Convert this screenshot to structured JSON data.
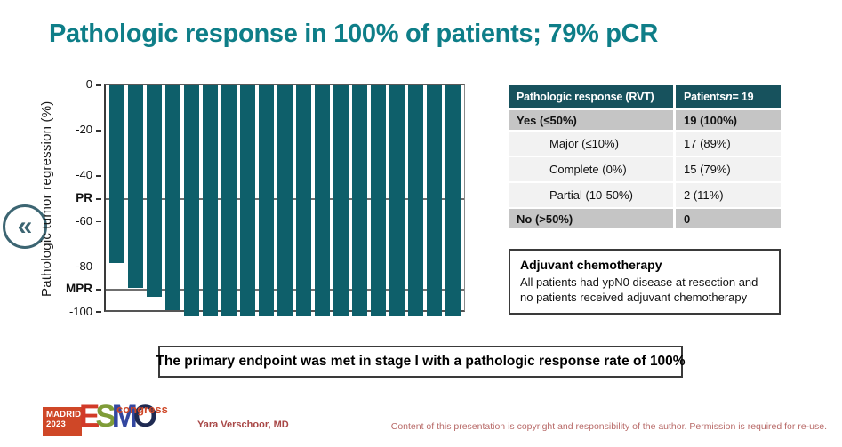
{
  "slide": {
    "title": "Pathologic response in 100% of patients; 79% pCR"
  },
  "nav": {
    "back_icon": "«"
  },
  "colors": {
    "accent_teal": "#0e7e88",
    "bar_teal": "#0e5f6a",
    "table_header_teal": "#17525d",
    "row_gray": "#c5c5c5",
    "logo_red": "#cf4727"
  },
  "chart_data": {
    "type": "bar",
    "title": "",
    "xlabel": "",
    "ylabel": "Pathologic tumor regression (%)",
    "ylim": [
      -100,
      0
    ],
    "grid": false,
    "legend": false,
    "n_patients": 19,
    "bar_color": "#0e5f6a",
    "values": [
      -78,
      -89,
      -93,
      -99,
      -100,
      -100,
      -100,
      -100,
      -100,
      -100,
      -100,
      -100,
      -100,
      -100,
      -100,
      -100,
      -100,
      -100,
      -100
    ],
    "yticks": [
      {
        "label": "0",
        "value": 0,
        "bold": false
      },
      {
        "label": "-20",
        "value": -20,
        "bold": false
      },
      {
        "label": "-40",
        "value": -40,
        "bold": false
      },
      {
        "label": "PR",
        "value": -50,
        "bold": true
      },
      {
        "label": "-60",
        "value": -60,
        "bold": false
      },
      {
        "label": "-80",
        "value": -80,
        "bold": false
      },
      {
        "label": "MPR",
        "value": -90,
        "bold": true
      },
      {
        "label": "-100",
        "value": -100,
        "bold": false
      }
    ],
    "reference_lines": [
      {
        "label": "PR",
        "value": -50
      },
      {
        "label": "MPR",
        "value": -90
      }
    ]
  },
  "table": {
    "header": {
      "col1": "Pathologic response (RVT)",
      "col2_prefix": "Patients ",
      "col2_n": "n",
      "col2_suffix": " = 19"
    },
    "rows": [
      {
        "label": "Yes (≤50%)",
        "value": "19 (100%)"
      },
      {
        "label": "Major (≤10%)",
        "value": "17 (89%)"
      },
      {
        "label": "Complete (0%)",
        "value": "15 (79%)"
      },
      {
        "label": "Partial (10-50%)",
        "value": "2 (11%)"
      },
      {
        "label": "No (>50%)",
        "value": "0"
      }
    ]
  },
  "adjuvant": {
    "title": "Adjuvant chemotherapy",
    "body": "All patients had ypN0 disease at resection and no patients received adjuvant chemotherapy"
  },
  "banner": {
    "text": "The primary endpoint was met in stage I with a pathologic response rate of 100%"
  },
  "footer": {
    "logo": {
      "city": "MADRID",
      "year": "2023",
      "letters": [
        {
          "char": "E",
          "color": "#d23a28"
        },
        {
          "char": "S",
          "color": "#7f9c38"
        },
        {
          "char": "M",
          "color": "#3347a0"
        },
        {
          "char": "O",
          "color": "#1f2a52"
        }
      ],
      "congress": "congress"
    },
    "presenter": "Yara Verschoor, MD",
    "copyright": "Content of this presentation is copyright and responsibility of the author. Permission is required for re-use."
  }
}
